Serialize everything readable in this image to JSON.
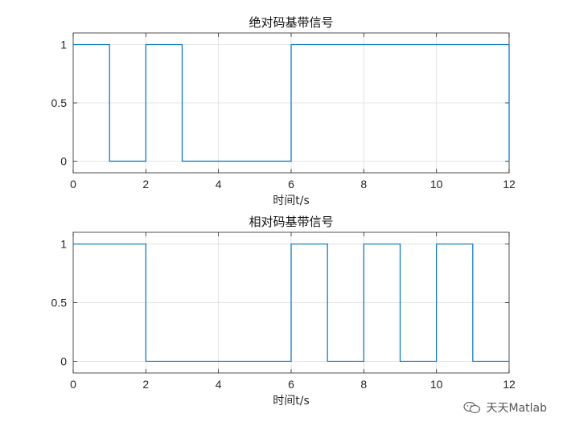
{
  "chart_data": [
    {
      "type": "line",
      "title": "绝对码基带信号",
      "xlabel": "时间t/s",
      "ylabel": "",
      "xlim": [
        0,
        12
      ],
      "ylim": [
        -0.1,
        1.1
      ],
      "xticks": [
        0,
        2,
        4,
        6,
        8,
        10,
        12
      ],
      "yticks": [
        0,
        0.5,
        1
      ],
      "xtick_labels": [
        "0",
        "2",
        "4",
        "6",
        "8",
        "10",
        "12"
      ],
      "ytick_labels": [
        "0",
        "0.5",
        "1"
      ],
      "grid": true,
      "line_color": "#0072bd",
      "series": [
        {
          "x": [
            0,
            1,
            1,
            2,
            2,
            3,
            3,
            6,
            6,
            12,
            12
          ],
          "y": [
            1,
            1,
            0,
            0,
            1,
            1,
            0,
            0,
            1,
            1,
            0
          ]
        }
      ]
    },
    {
      "type": "line",
      "title": "相对码基带信号",
      "xlabel": "时间t/s",
      "ylabel": "",
      "xlim": [
        0,
        12
      ],
      "ylim": [
        -0.1,
        1.1
      ],
      "xticks": [
        0,
        2,
        4,
        6,
        8,
        10,
        12
      ],
      "yticks": [
        0,
        0.5,
        1
      ],
      "xtick_labels": [
        "0",
        "2",
        "4",
        "6",
        "8",
        "10",
        "12"
      ],
      "ytick_labels": [
        "0",
        "0.5",
        "1"
      ],
      "grid": true,
      "line_color": "#0072bd",
      "series": [
        {
          "x": [
            0,
            2,
            2,
            6,
            6,
            7,
            7,
            8,
            8,
            9,
            9,
            10,
            10,
            11,
            11,
            12
          ],
          "y": [
            1,
            1,
            0,
            0,
            1,
            1,
            0,
            0,
            1,
            1,
            0,
            0,
            1,
            1,
            0,
            0
          ]
        }
      ]
    }
  ],
  "watermark": {
    "text": "天天Matlab",
    "icon": "wechat-icon"
  }
}
